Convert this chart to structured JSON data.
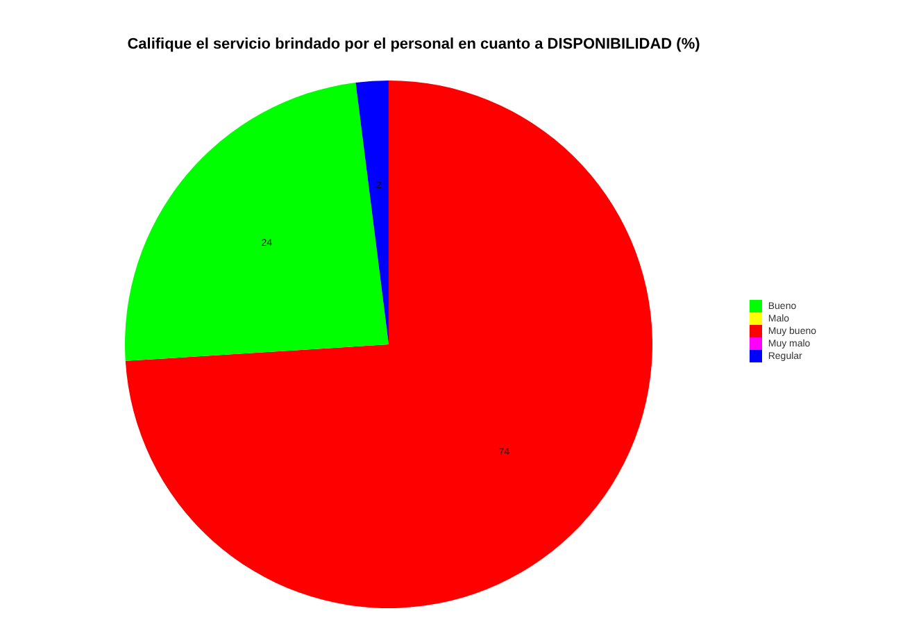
{
  "chart_data": {
    "type": "pie",
    "title": "Califique el servicio brindado por el personal en cuanto a DISPONIBILIDAD (%)",
    "categories": [
      "Muy bueno",
      "Bueno",
      "Regular",
      "Malo",
      "Muy malo"
    ],
    "values": [
      74,
      24,
      2,
      0,
      0
    ],
    "colors": [
      "#ff0000",
      "#00ff00",
      "#0000ff",
      "#ffff00",
      "#ff00ff"
    ],
    "value_labels": [
      "74",
      "24",
      "2",
      null,
      null
    ],
    "legend": "right"
  }
}
